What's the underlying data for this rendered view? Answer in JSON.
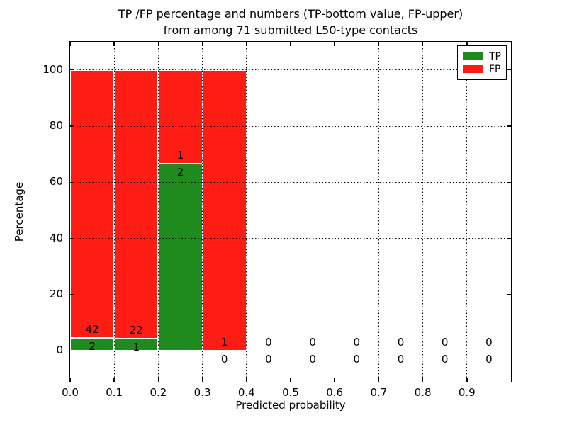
{
  "figure": {
    "title_lines": [
      "TP /FP percentage and numbers (TP-bottom value, FP-upper)",
      "from among 71 submitted L50-type contacts"
    ]
  },
  "chart_data": {
    "type": "bar",
    "stacked": true,
    "title": "TP /FP percentage and numbers (TP-bottom value, FP-upper)\nfrom among 71 submitted L50-type contacts",
    "xlabel": "Predicted probability",
    "ylabel": "Percentage",
    "xlim": [
      0.0,
      1.0
    ],
    "ylim": [
      -11,
      110
    ],
    "xticks": [
      "0.0",
      "0.1",
      "0.2",
      "0.3",
      "0.4",
      "0.5",
      "0.6",
      "0.7",
      "0.8",
      "0.9"
    ],
    "yticks": [
      "0",
      "20",
      "40",
      "60",
      "80",
      "100"
    ],
    "grid": "dotted",
    "grid_color": "#000000",
    "legend_position": "upper right",
    "legend": [
      {
        "label": "TP",
        "color": "#1f8b1f"
      },
      {
        "label": "FP",
        "color": "#fd1d15"
      }
    ],
    "total_contacts": 71,
    "bin_width": 0.1,
    "bins": [
      {
        "range": [
          0.0,
          0.1
        ],
        "tp": 2,
        "fp": 42
      },
      {
        "range": [
          0.1,
          0.2
        ],
        "tp": 1,
        "fp": 22
      },
      {
        "range": [
          0.2,
          0.3
        ],
        "tp": 2,
        "fp": 1
      },
      {
        "range": [
          0.3,
          0.4
        ],
        "tp": 0,
        "fp": 1
      },
      {
        "range": [
          0.4,
          0.5
        ],
        "tp": 0,
        "fp": 0
      },
      {
        "range": [
          0.5,
          0.6
        ],
        "tp": 0,
        "fp": 0
      },
      {
        "range": [
          0.6,
          0.7
        ],
        "tp": 0,
        "fp": 0
      },
      {
        "range": [
          0.7,
          0.8
        ],
        "tp": 0,
        "fp": 0
      },
      {
        "range": [
          0.8,
          0.9
        ],
        "tp": 0,
        "fp": 0
      },
      {
        "range": [
          0.9,
          1.0
        ],
        "tp": 0,
        "fp": 0
      }
    ]
  }
}
